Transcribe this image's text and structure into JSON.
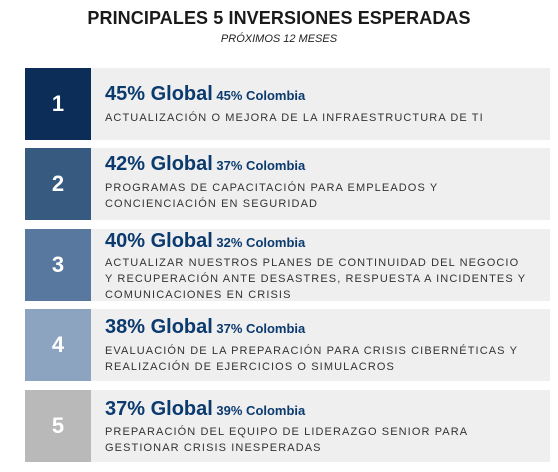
{
  "title": "PRINCIPALES 5 INVERSIONES ESPERADAS",
  "subtitle": "PRÓXIMOS 12 MESES",
  "colors": [
    "#0c2d57",
    "#375a80",
    "#5878a0",
    "#8ca4bf",
    "#b9b9b9"
  ],
  "chart_data": {
    "type": "table",
    "title": "PRINCIPALES 5 INVERSIONES ESPERADAS",
    "subtitle": "PRÓXIMOS 12 MESES",
    "rows": [
      {
        "rank": "1",
        "global": "45% Global",
        "colombia": "45% Colombia",
        "global_value": 45,
        "colombia_value": 45,
        "description": [
          "ACTUALIZACIÓN O MEJORA DE LA INFRAESTRUCTURA DE TI"
        ]
      },
      {
        "rank": "2",
        "global": "42% Global",
        "colombia": "37% Colombia",
        "global_value": 42,
        "colombia_value": 37,
        "description": [
          "PROGRAMAS DE CAPACITACIÓN PARA EMPLEADOS Y",
          "CONCIENCIACIÓN EN SEGURIDAD"
        ]
      },
      {
        "rank": "3",
        "global": "40% Global",
        "colombia": "32% Colombia",
        "global_value": 40,
        "colombia_value": 32,
        "description": [
          "ACTUALIZAR NUESTROS PLANES DE CONTINUIDAD DEL NEGOCIO",
          "Y RECUPERACIÓN ANTE DESASTRES, RESPUESTA A INCIDENTES Y",
          "COMUNICACIONES EN CRISIS"
        ]
      },
      {
        "rank": "4",
        "global": "38% Global",
        "colombia": "37% Colombia",
        "global_value": 38,
        "colombia_value": 37,
        "description": [
          "EVALUACIÓN DE LA PREPARACIÓN PARA CRISIS CIBERNÉTICAS Y",
          "REALIZACIÓN DE EJERCICIOS O SIMULACROS"
        ]
      },
      {
        "rank": "5",
        "global": "37% Global",
        "colombia": "39% Colombia",
        "global_value": 37,
        "colombia_value": 39,
        "description": [
          "PREPARACIÓN DEL EQUIPO DE LIDERAZGO SENIOR PARA",
          "GESTIONAR CRISIS INESPERADAS"
        ]
      }
    ]
  }
}
